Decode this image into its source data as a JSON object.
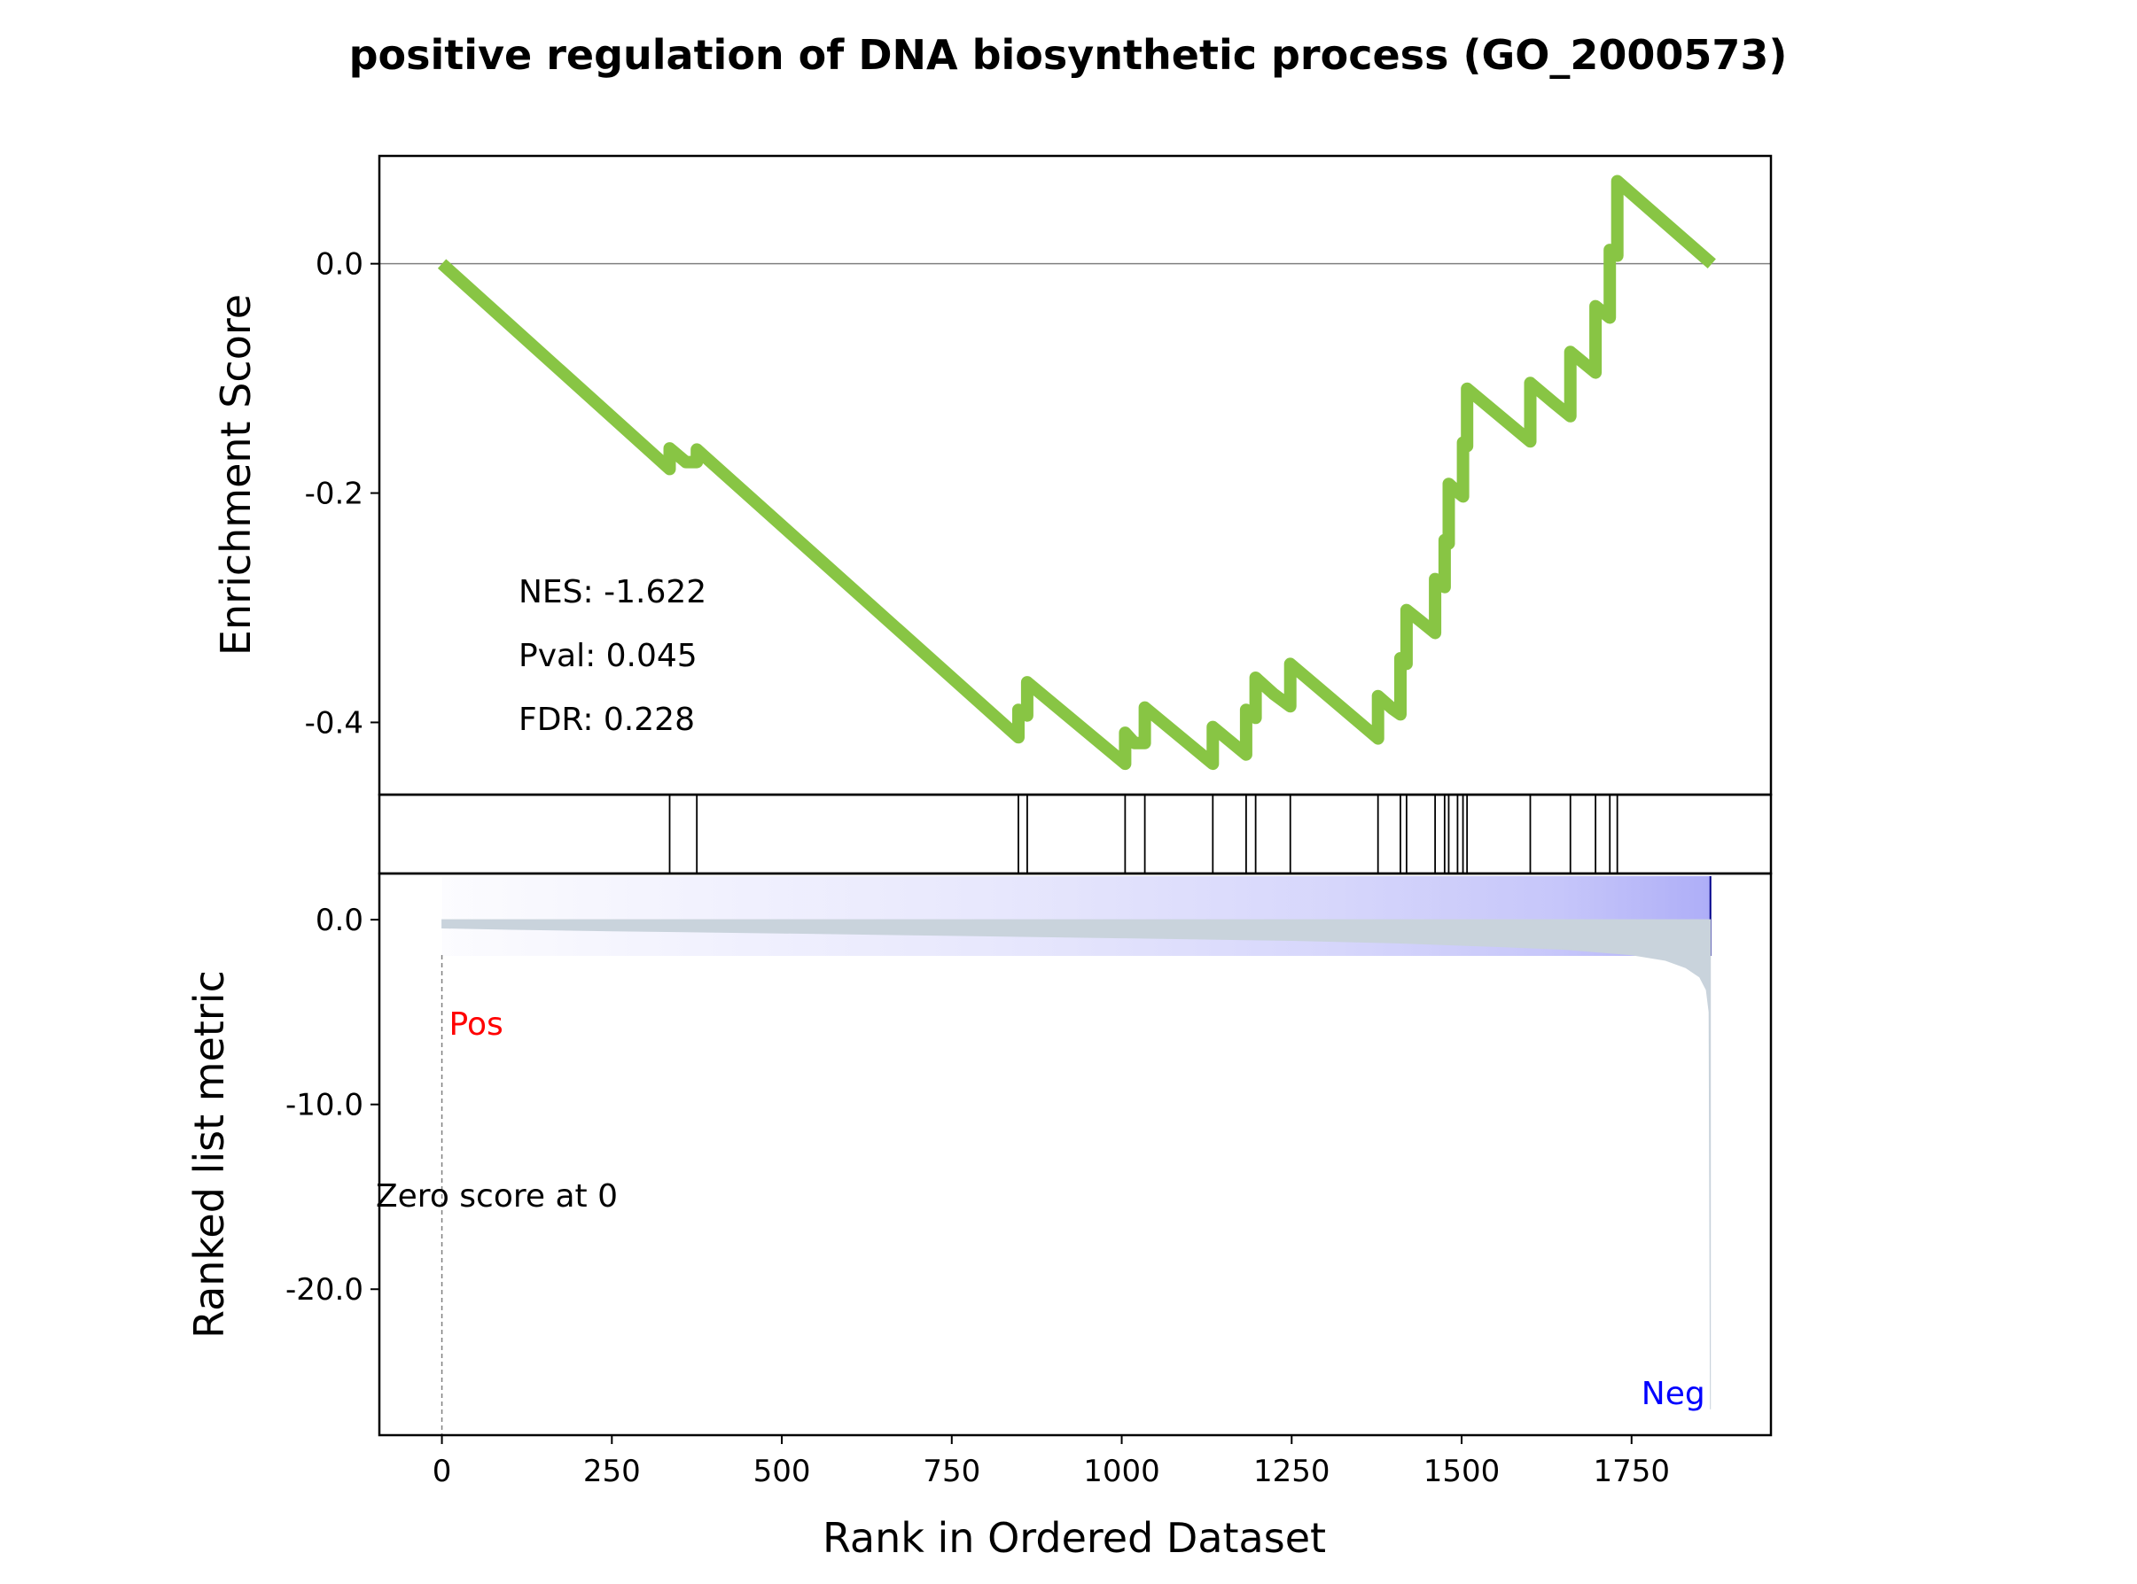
{
  "chart_data": {
    "type": "line",
    "title": "positive regulation of DNA biosynthetic process (GO_2000573)",
    "xlabel": "Rank in Ordered Dataset",
    "xlim": [
      -92,
      1955
    ],
    "xticks": [
      0,
      250,
      500,
      750,
      1000,
      1250,
      1500,
      1750
    ],
    "xtick_labels": [
      "0",
      "250",
      "500",
      "750",
      "1000",
      "1250",
      "1500",
      "1750"
    ],
    "enrichment": {
      "ylabel": "Enrichment Score",
      "ylim": [
        -0.463,
        0.094
      ],
      "yticks": [
        0.0,
        -0.2,
        -0.4
      ],
      "ytick_labels": [
        "0.0",
        "-0.2",
        "-0.4"
      ],
      "line_color": "#88c544",
      "zero_line_color": "#808080",
      "points": [
        [
          0,
          0.0
        ],
        [
          335,
          -0.179
        ],
        [
          335,
          -0.161
        ],
        [
          359,
          -0.173
        ],
        [
          375,
          -0.173
        ],
        [
          375,
          -0.162
        ],
        [
          848,
          -0.413
        ],
        [
          848,
          -0.389
        ],
        [
          861,
          -0.394
        ],
        [
          861,
          -0.365
        ],
        [
          1005,
          -0.436
        ],
        [
          1005,
          -0.409
        ],
        [
          1019,
          -0.418
        ],
        [
          1034,
          -0.418
        ],
        [
          1034,
          -0.387
        ],
        [
          1134,
          -0.436
        ],
        [
          1134,
          -0.404
        ],
        [
          1183,
          -0.428
        ],
        [
          1183,
          -0.389
        ],
        [
          1197,
          -0.396
        ],
        [
          1197,
          -0.361
        ],
        [
          1223,
          -0.375
        ],
        [
          1223,
          -0.375
        ],
        [
          1248,
          -0.386
        ],
        [
          1248,
          -0.349
        ],
        [
          1377,
          -0.414
        ],
        [
          1377,
          -0.377
        ],
        [
          1398,
          -0.388
        ],
        [
          1410,
          -0.393
        ],
        [
          1410,
          -0.344
        ],
        [
          1419,
          -0.349
        ],
        [
          1419,
          -0.302
        ],
        [
          1438,
          -0.311
        ],
        [
          1461,
          -0.322
        ],
        [
          1461,
          -0.275
        ],
        [
          1475,
          -0.282
        ],
        [
          1475,
          -0.241
        ],
        [
          1481,
          -0.244
        ],
        [
          1481,
          -0.192
        ],
        [
          1494,
          -0.199
        ],
        [
          1494,
          -0.199
        ],
        [
          1502,
          -0.203
        ],
        [
          1502,
          -0.156
        ],
        [
          1508,
          -0.159
        ],
        [
          1508,
          -0.109
        ],
        [
          1601,
          -0.155
        ],
        [
          1601,
          -0.104
        ],
        [
          1635,
          -0.121
        ],
        [
          1660,
          -0.133
        ],
        [
          1660,
          -0.077
        ],
        [
          1697,
          -0.095
        ],
        [
          1697,
          -0.037
        ],
        [
          1718,
          -0.047
        ],
        [
          1718,
          0.012
        ],
        [
          1729,
          0.007
        ],
        [
          1729,
          0.072
        ],
        [
          1868,
          0.0
        ]
      ]
    },
    "annotations": {
      "nes": "NES: -1.622",
      "pval": "Pval: 0.045",
      "fdr": "FDR: 0.228"
    },
    "hits": [
      335,
      375,
      848,
      861,
      1005,
      1034,
      1134,
      1183,
      1197,
      1248,
      1377,
      1410,
      1419,
      1461,
      1475,
      1481,
      1494,
      1502,
      1508,
      1601,
      1660,
      1697,
      1718,
      1729
    ],
    "ranked_metric": {
      "ylabel": "Ranked list metric",
      "ylim": [
        -27.9,
        2.5
      ],
      "yticks": [
        0.0,
        -10.0,
        -20.0
      ],
      "ytick_labels": [
        "0.0",
        "-10.0",
        "-20.0"
      ],
      "fill_color": "#c9d3dc",
      "heat_color": "#5d5df0",
      "values": [
        [
          0,
          -0.45
        ],
        [
          100,
          -0.52
        ],
        [
          250,
          -0.6
        ],
        [
          500,
          -0.72
        ],
        [
          750,
          -0.85
        ],
        [
          1000,
          -0.98
        ],
        [
          1250,
          -1.12
        ],
        [
          1400,
          -1.25
        ],
        [
          1550,
          -1.45
        ],
        [
          1650,
          -1.6
        ],
        [
          1750,
          -1.9
        ],
        [
          1800,
          -2.2
        ],
        [
          1830,
          -2.6
        ],
        [
          1850,
          -3.1
        ],
        [
          1860,
          -3.8
        ],
        [
          1864,
          -5.0
        ],
        [
          1866,
          -26.5
        ]
      ],
      "pos_label": "Pos",
      "neg_label": "Neg",
      "pos_color": "#ff0000",
      "neg_color": "#0000ff",
      "zero_score_label": "Zero score at 0",
      "zero_score_x": 0
    }
  }
}
